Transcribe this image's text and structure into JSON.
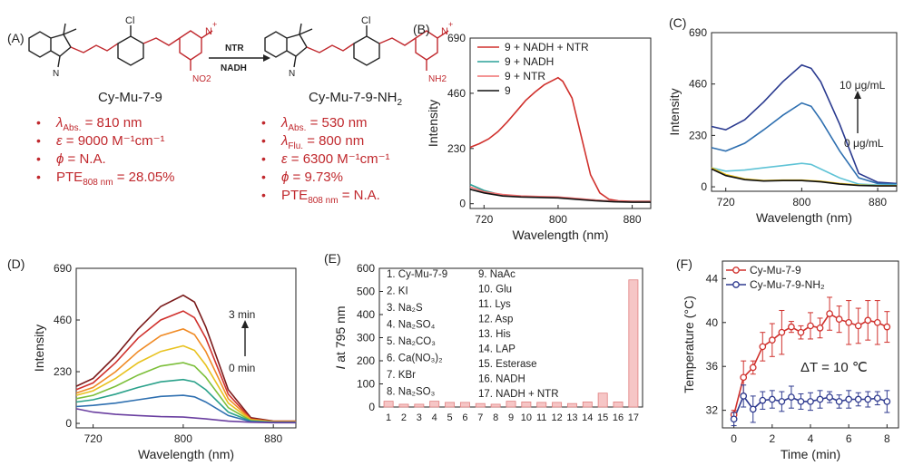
{
  "panel_labels": [
    "(A)",
    "(B)",
    "(C)",
    "(D)",
    "(E)",
    "(F)"
  ],
  "scheme": {
    "arrow_top": "NTR",
    "arrow_bottom": "NADH",
    "atoms": {
      "cl": "Cl",
      "n_plus": "N",
      "plus": "+",
      "no2": "NO2",
      "nh2": "NH2",
      "n": "N"
    },
    "left_name": "Cy-Mu-7-9",
    "right_name_main": "Cy-Mu-7-9-NH",
    "right_name_sub": "2",
    "bullet": "•",
    "left_props": [
      {
        "sym": "λ",
        "sub": "Abs.",
        "text": " = 810 nm"
      },
      {
        "sym": "ε",
        "sub": "",
        "text": " = 9000 M⁻¹cm⁻¹"
      },
      {
        "sym": "ϕ",
        "sub": "",
        "text": " = N.A."
      },
      {
        "sym": "PTE",
        "sub": "808 nm",
        "text": " = 28.05%"
      }
    ],
    "right_props": [
      {
        "sym": "λ",
        "sub": "Abs.",
        "text": " = 530 nm"
      },
      {
        "sym": "λ",
        "sub": "Flu.",
        "text": " = 800 nm"
      },
      {
        "sym": "ε",
        "sub": "",
        "text": " = 6300 M⁻¹cm⁻¹"
      },
      {
        "sym": "ϕ",
        "sub": "",
        "text": " = 9.73%"
      },
      {
        "sym": "PTE",
        "sub": "808 nm",
        "text": " = N.A."
      }
    ]
  },
  "chart_data": [
    {
      "id": "B",
      "type": "line",
      "xlabel": "Wavelength (nm)",
      "ylabel": "Intensity",
      "xlim": [
        705,
        900
      ],
      "ylim": [
        -20,
        690
      ],
      "xticks": [
        720,
        800,
        880
      ],
      "yticks": [
        0,
        230,
        460,
        690
      ],
      "legend": "top-left",
      "series": [
        {
          "name": "9 + NADH + NTR",
          "color": "#d0312d",
          "x": [
            705,
            715,
            725,
            735,
            745,
            755,
            765,
            775,
            785,
            795,
            800,
            805,
            815,
            825,
            835,
            845,
            855,
            865,
            880,
            900
          ],
          "y": [
            235,
            250,
            270,
            300,
            340,
            385,
            430,
            465,
            495,
            515,
            525,
            510,
            440,
            280,
            120,
            45,
            18,
            12,
            10,
            10
          ]
        },
        {
          "name": "9 + NADH",
          "color": "#2aa198",
          "x": [
            705,
            720,
            740,
            760,
            780,
            800,
            820,
            840,
            860,
            880,
            900
          ],
          "y": [
            80,
            55,
            35,
            30,
            28,
            25,
            20,
            15,
            10,
            8,
            8
          ]
        },
        {
          "name": "9 + NTR",
          "color": "#f07070",
          "x": [
            705,
            720,
            740,
            760,
            780,
            800,
            820,
            840,
            860,
            880,
            900
          ],
          "y": [
            70,
            50,
            38,
            32,
            30,
            28,
            22,
            15,
            10,
            8,
            8
          ]
        },
        {
          "name": "9",
          "color": "#111111",
          "x": [
            705,
            720,
            740,
            760,
            780,
            800,
            820,
            840,
            860,
            880,
            900
          ],
          "y": [
            60,
            45,
            32,
            28,
            26,
            24,
            18,
            12,
            8,
            6,
            6
          ]
        }
      ]
    },
    {
      "id": "C",
      "type": "line",
      "xlabel": "Wavelength (nm)",
      "ylabel": "Intensity",
      "xlim": [
        705,
        900
      ],
      "ylim": [
        -20,
        690
      ],
      "xticks": [
        720,
        800,
        880
      ],
      "yticks": [
        0,
        230,
        460,
        690
      ],
      "annotation_top": "10 μg/mL",
      "annotation_bottom": "0 μg/mL",
      "series": [
        {
          "color": "#2a3a8f",
          "x": [
            705,
            720,
            740,
            760,
            780,
            800,
            810,
            820,
            840,
            860,
            880,
            900
          ],
          "y": [
            270,
            255,
            300,
            380,
            470,
            545,
            530,
            470,
            280,
            60,
            20,
            15
          ]
        },
        {
          "color": "#2e6fb0",
          "x": [
            705,
            720,
            740,
            760,
            780,
            800,
            810,
            820,
            840,
            860,
            880,
            900
          ],
          "y": [
            175,
            160,
            195,
            255,
            320,
            375,
            360,
            300,
            160,
            40,
            15,
            12
          ]
        },
        {
          "color": "#5fc3d6",
          "x": [
            705,
            720,
            740,
            760,
            780,
            800,
            810,
            820,
            840,
            860,
            880,
            900
          ],
          "y": [
            85,
            70,
            75,
            85,
            95,
            105,
            100,
            80,
            40,
            12,
            8,
            8
          ]
        },
        {
          "color": "#e8c21f",
          "x": [
            705,
            720,
            740,
            760,
            780,
            800,
            820,
            840,
            860,
            880,
            900
          ],
          "y": [
            85,
            55,
            35,
            28,
            30,
            30,
            25,
            15,
            8,
            5,
            5
          ]
        },
        {
          "color": "#111111",
          "x": [
            705,
            720,
            740,
            760,
            780,
            800,
            820,
            840,
            860,
            880,
            900
          ],
          "y": [
            80,
            50,
            32,
            26,
            28,
            28,
            22,
            12,
            6,
            4,
            4
          ]
        }
      ]
    },
    {
      "id": "D",
      "type": "line",
      "xlabel": "Wavelength (nm)",
      "ylabel": "Intensity",
      "xlim": [
        705,
        900
      ],
      "ylim": [
        -20,
        690
      ],
      "xticks": [
        720,
        800,
        880
      ],
      "yticks": [
        0,
        230,
        460,
        690
      ],
      "annotation_top": "3 min",
      "annotation_bottom": "0 min",
      "series": [
        {
          "color": "#7a1a1a",
          "x": [
            705,
            720,
            740,
            760,
            780,
            800,
            810,
            820,
            840,
            860,
            880,
            900
          ],
          "y": [
            165,
            200,
            300,
            420,
            520,
            570,
            540,
            430,
            150,
            25,
            10,
            10
          ]
        },
        {
          "color": "#d0312d",
          "x": [
            705,
            720,
            740,
            760,
            780,
            800,
            810,
            820,
            840,
            860,
            880,
            900
          ],
          "y": [
            150,
            180,
            270,
            380,
            460,
            500,
            470,
            380,
            130,
            20,
            8,
            8
          ]
        },
        {
          "color": "#f08a24",
          "x": [
            705,
            720,
            740,
            760,
            780,
            800,
            810,
            820,
            840,
            860,
            880,
            900
          ],
          "y": [
            135,
            160,
            230,
            320,
            390,
            420,
            395,
            320,
            110,
            18,
            8,
            8
          ]
        },
        {
          "color": "#e8c21f",
          "x": [
            705,
            720,
            740,
            760,
            780,
            800,
            810,
            820,
            840,
            860,
            880,
            900
          ],
          "y": [
            125,
            145,
            200,
            270,
            320,
            345,
            325,
            260,
            90,
            15,
            6,
            6
          ]
        },
        {
          "color": "#7cbf3a",
          "x": [
            705,
            720,
            740,
            760,
            780,
            800,
            810,
            820,
            840,
            860,
            880,
            900
          ],
          "y": [
            110,
            125,
            165,
            215,
            255,
            270,
            255,
            205,
            70,
            12,
            5,
            5
          ]
        },
        {
          "color": "#2aa18a",
          "x": [
            705,
            720,
            740,
            760,
            780,
            800,
            810,
            820,
            840,
            860,
            880,
            900
          ],
          "y": [
            95,
            105,
            130,
            160,
            185,
            195,
            185,
            150,
            50,
            10,
            5,
            5
          ]
        },
        {
          "color": "#2e6fb0",
          "x": [
            705,
            720,
            740,
            760,
            780,
            800,
            810,
            820,
            840,
            860,
            880,
            900
          ],
          "y": [
            75,
            80,
            90,
            105,
            120,
            125,
            118,
            95,
            35,
            8,
            4,
            4
          ]
        },
        {
          "color": "#6a3fa0",
          "x": [
            705,
            720,
            740,
            760,
            780,
            800,
            820,
            840,
            860,
            880,
            900
          ],
          "y": [
            65,
            50,
            40,
            35,
            30,
            28,
            20,
            10,
            5,
            3,
            3
          ]
        }
      ]
    },
    {
      "id": "E",
      "type": "bar",
      "ylabel_italic": "I",
      "ylabel_rest": " at 795 nm",
      "ylim": [
        0,
        600
      ],
      "yticks": [
        0,
        100,
        200,
        300,
        400,
        500,
        600
      ],
      "categories": [
        "1",
        "2",
        "3",
        "4",
        "5",
        "6",
        "7",
        "8",
        "9",
        "10",
        "11",
        "12",
        "13",
        "14",
        "15",
        "16",
        "17"
      ],
      "values": [
        25,
        12,
        12,
        25,
        20,
        20,
        15,
        12,
        25,
        22,
        20,
        20,
        15,
        22,
        60,
        22,
        550
      ],
      "bar_color": "#f6c6c6",
      "bar_edge": "#e08080",
      "legend_col1": [
        "1. Cy-Mu-7-9",
        "2. KI",
        "3. Na₂S",
        "4. Na₂SO₄",
        "5. Na₂CO₃",
        "6. Ca(NO₃)₂",
        "7. KBr",
        "8. Na₂SO₃"
      ],
      "legend_col2": [
        "9.  NaAc",
        "10. Glu",
        "11. Lys",
        "12. Asp",
        "13. His",
        "14. LAP",
        "15. Esterase",
        "16. NADH",
        "17. NADH + NTR"
      ]
    },
    {
      "id": "F",
      "type": "line",
      "xlabel": "Time (min)",
      "ylabel": "Temperature (°C)",
      "xlim": [
        -0.6,
        8.6
      ],
      "ylim": [
        30.4,
        45.6
      ],
      "xticks": [
        0,
        2,
        4,
        6,
        8
      ],
      "yticks": [
        32,
        36,
        40,
        44
      ],
      "annotation": "ΔT = 10 ℃",
      "legend": "top-left",
      "series": [
        {
          "name": "Cy-Mu-7-9",
          "color": "#d0312d",
          "x": [
            0,
            0.5,
            1,
            1.5,
            2,
            2.5,
            3,
            3.5,
            4,
            4.5,
            5,
            5.5,
            6,
            6.5,
            7,
            7.5,
            8
          ],
          "y": [
            31.6,
            35,
            35.9,
            37.8,
            38.4,
            39.1,
            39.6,
            39.1,
            39.7,
            39.5,
            40.8,
            40.3,
            40,
            39.7,
            40.2,
            40,
            39.6
          ],
          "err": [
            0.4,
            1.5,
            0.6,
            1.3,
            1.5,
            2,
            0.5,
            0.6,
            1.2,
            0.9,
            1.5,
            1.2,
            2,
            1.6,
            1.8,
            2,
            1.4
          ]
        },
        {
          "name": "Cy-Mu-7-9-NH₂",
          "color": "#2e3a8f",
          "x": [
            0,
            0.5,
            1,
            1.5,
            2,
            2.5,
            3,
            3.5,
            4,
            4.5,
            5,
            5.5,
            6,
            6.5,
            7,
            7.5,
            8
          ],
          "y": [
            31.2,
            33.3,
            32.1,
            32.9,
            33,
            32.8,
            33.2,
            32.8,
            32.8,
            33,
            33.2,
            32.8,
            33,
            33,
            33,
            33.1,
            32.8
          ],
          "err": [
            0.6,
            1,
            1.2,
            0.8,
            0.8,
            0.9,
            1,
            0.7,
            0.8,
            0.8,
            0.5,
            0.6,
            0.8,
            0.6,
            0.7,
            0.6,
            1
          ]
        }
      ]
    }
  ]
}
